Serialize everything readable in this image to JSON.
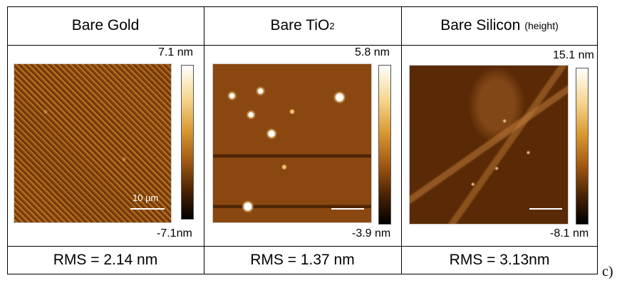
{
  "columns": [
    {
      "title": "Bare Gold",
      "title_sub": "",
      "title_small": "",
      "max": "7.1 nm",
      "min": "-7.1nm",
      "scale_text": "10 µm",
      "rms": "RMS = 2.14 nm"
    },
    {
      "title": "Bare TiO",
      "title_sub": "2",
      "title_small": "",
      "max": "5.8 nm",
      "min": "-3.9 nm",
      "scale_text": "",
      "rms": "RMS = 1.37 nm"
    },
    {
      "title": "Bare Silicon",
      "title_sub": "",
      "title_small": "(height)",
      "max": "15.1 nm",
      "min": "-8.1 nm",
      "scale_text": "",
      "rms": "RMS = 3.13nm"
    }
  ],
  "panel_label": "c)",
  "colors": {
    "colormap": [
      "#ffffff",
      "#f6d58d",
      "#d99a32",
      "#a45a12",
      "#4a2204",
      "#000000"
    ]
  }
}
